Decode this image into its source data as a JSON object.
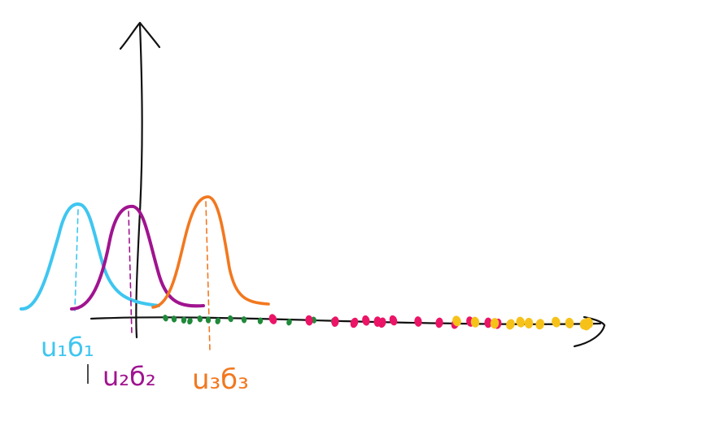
{
  "colors": {
    "axis": "#111111",
    "gaussian_1": "#3ec6f0",
    "gaussian_2": "#a0148f",
    "gaussian_3": "#f2781f",
    "points_green": "#1f8a3a",
    "points_pink": "#ec1467",
    "points_yellow": "#f6c21a"
  },
  "labels": {
    "g1": "u₁б₁",
    "g2": "u₂б₂",
    "g3": "u₃б₃"
  },
  "data_points": {
    "green_count": 13,
    "pink_count": 14,
    "yellow_count": 12
  }
}
